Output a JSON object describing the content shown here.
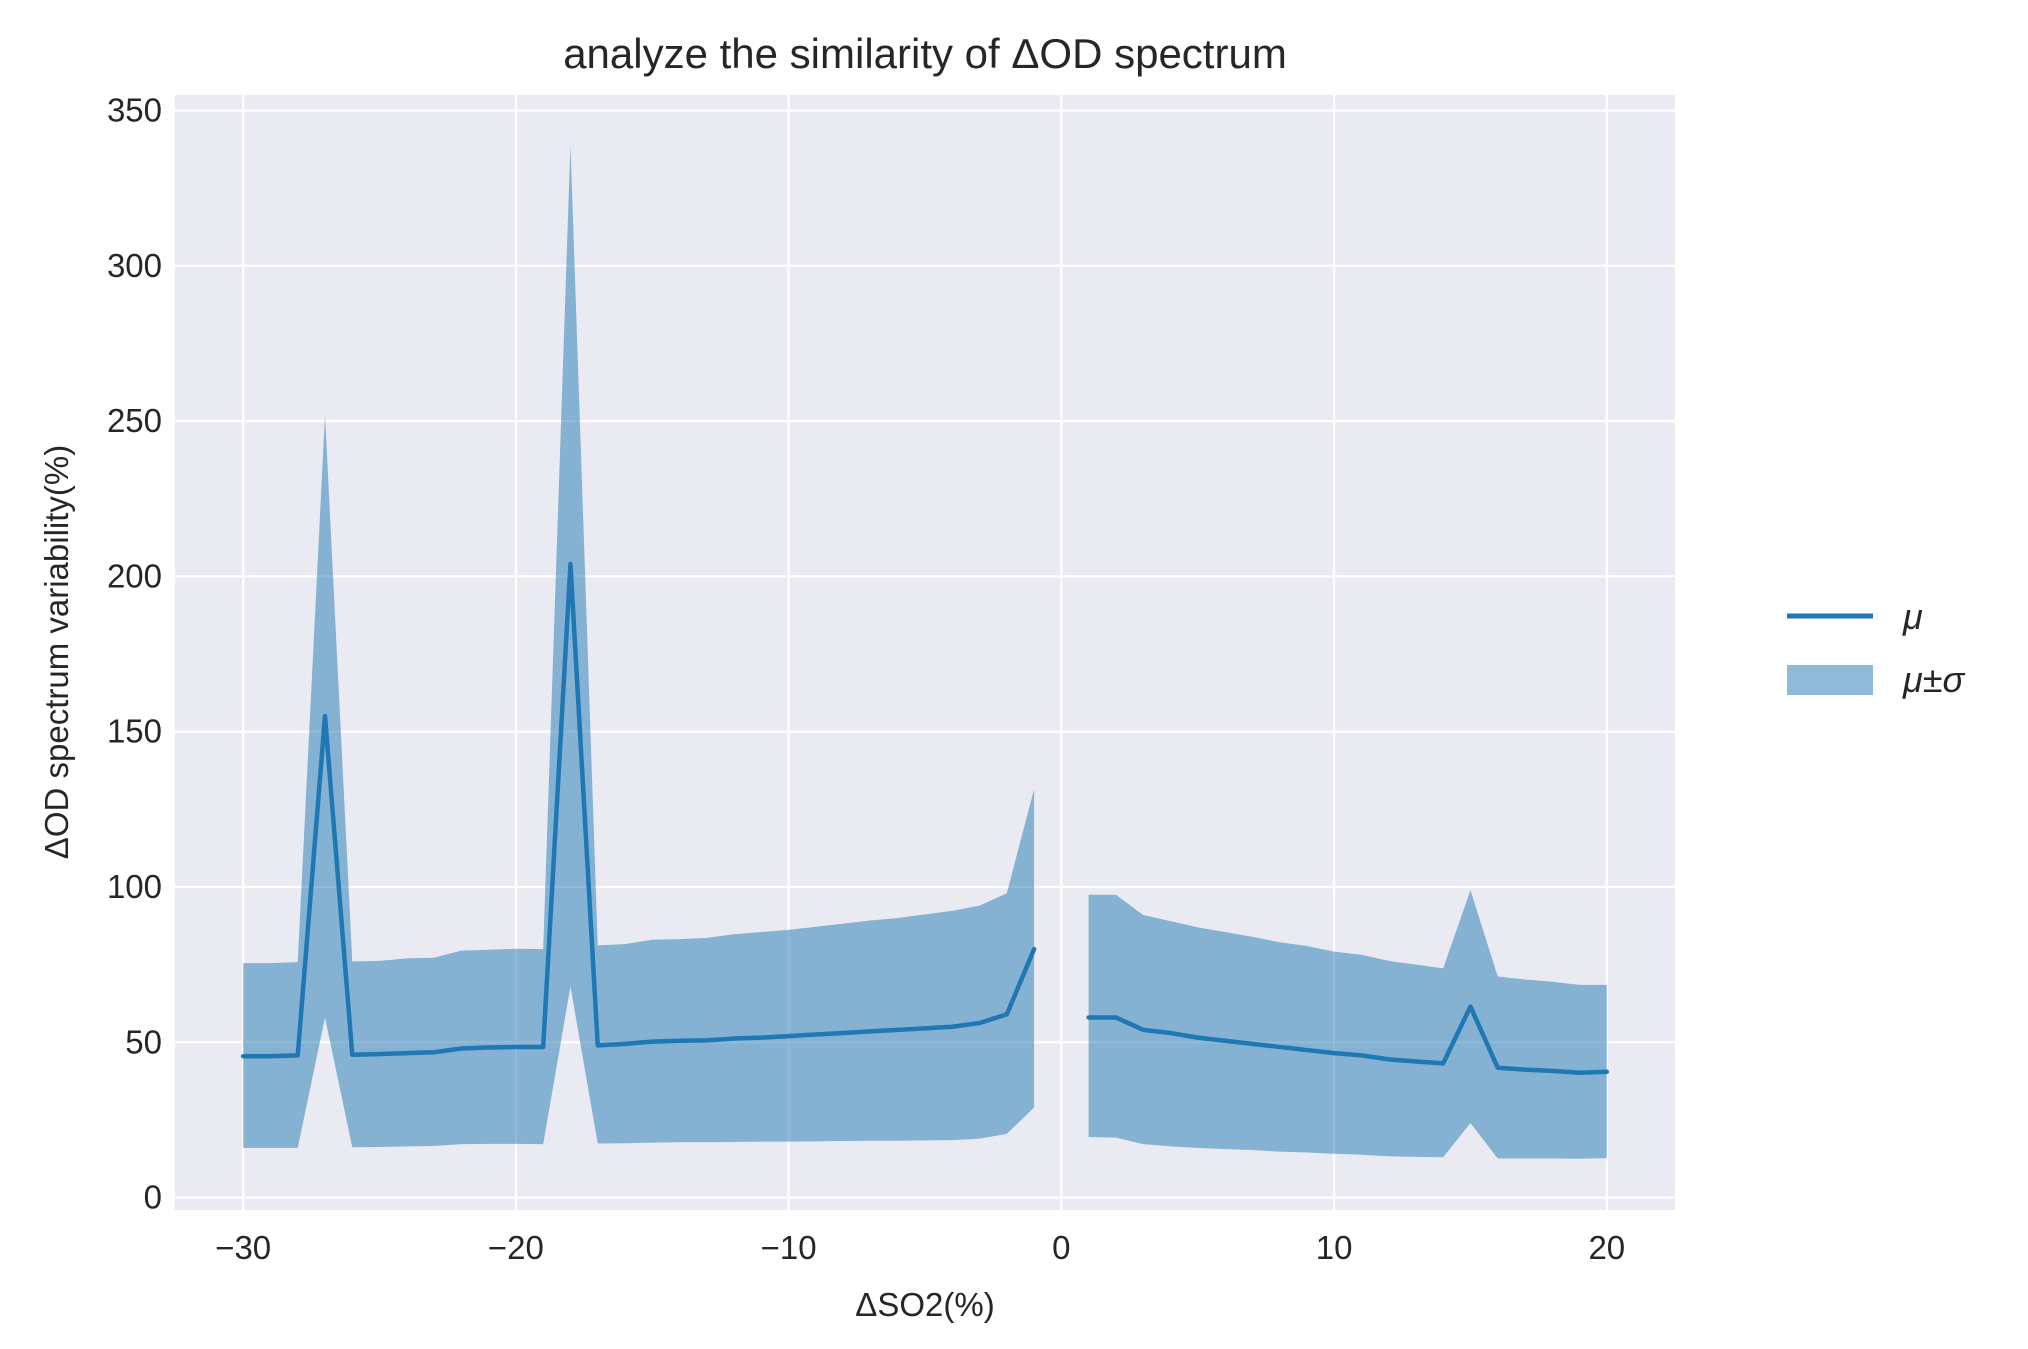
{
  "chart_data": {
    "type": "line",
    "title": "analyze the similarity of ΔOD spectrum",
    "xlabel": "ΔSO2(%)",
    "ylabel": "ΔOD spectrum variability(%)",
    "xlim": [
      -32.5,
      22.5
    ],
    "ylim": [
      -4,
      355
    ],
    "x_ticks": [
      -30,
      -20,
      -10,
      0,
      10,
      20
    ],
    "x_tick_labels": [
      "−30",
      "−20",
      "−10",
      "0",
      "10",
      "20"
    ],
    "y_ticks": [
      0,
      50,
      100,
      150,
      200,
      250,
      300,
      350
    ],
    "y_tick_labels": [
      "0",
      "50",
      "100",
      "150",
      "200",
      "250",
      "300",
      "350"
    ],
    "grid": true,
    "legend_position": "right-outside",
    "colors": {
      "line": "#1f77b4",
      "band": "#1f77b4",
      "background": "#eaeaf2",
      "grid": "#ffffff"
    },
    "series": [
      {
        "name": "μ",
        "kind": "line",
        "segments": [
          {
            "x": [
              -30,
              -29,
              -28,
              -27,
              -26,
              -25,
              -24,
              -23,
              -22,
              -21,
              -20,
              -19,
              -18,
              -17,
              -16,
              -15,
              -14,
              -13,
              -12,
              -11,
              -10,
              -9,
              -8,
              -7,
              -6,
              -5,
              -4,
              -3,
              -2,
              -1
            ],
            "y": [
              45.5,
              45.5,
              45.8,
              155,
              46,
              46.2,
              46.5,
              46.8,
              48,
              48.3,
              48.5,
              48.5,
              204,
              49,
              49.5,
              50.2,
              50.5,
              50.6,
              51.2,
              51.5,
              52,
              52.5,
              53,
              53.5,
              54,
              54.5,
              55,
              56.2,
              59,
              80
            ]
          },
          {
            "x": [
              1,
              2,
              3,
              4,
              5,
              6,
              7,
              8,
              9,
              10,
              11,
              12,
              13,
              14,
              15,
              16,
              17,
              18,
              19,
              20
            ],
            "y": [
              58,
              58,
              54,
              53,
              51.5,
              50.5,
              49.5,
              48.5,
              47.5,
              46.5,
              45.8,
              44.5,
              43.8,
              43.2,
              61.5,
              41.8,
              41.2,
              40.8,
              40.2,
              40.5
            ]
          }
        ]
      },
      {
        "name": "μ±σ",
        "kind": "band",
        "segments": [
          {
            "x": [
              -30,
              -29,
              -28,
              -27,
              -26,
              -25,
              -24,
              -23,
              -22,
              -21,
              -20,
              -19,
              -18,
              -17,
              -16,
              -15,
              -14,
              -13,
              -12,
              -11,
              -10,
              -9,
              -8,
              -7,
              -6,
              -5,
              -4,
              -3,
              -2,
              -1
            ],
            "upper": [
              75.5,
              75.5,
              75.8,
              252,
              76,
              76.2,
              77,
              77.2,
              79.5,
              79.8,
              80.1,
              80,
              339,
              81.2,
              81.6,
              83,
              83.2,
              83.6,
              84.8,
              85.5,
              86.2,
              87.2,
              88.2,
              89.2,
              90,
              91.2,
              92.3,
              94,
              98,
              131.5
            ],
            "lower": [
              16,
              16,
              16,
              58,
              16.2,
              16.3,
              16.5,
              16.6,
              17.2,
              17.3,
              17.3,
              17.2,
              68,
              17.4,
              17.5,
              17.7,
              17.8,
              17.8,
              17.9,
              18,
              18,
              18.1,
              18.2,
              18.3,
              18.3,
              18.4,
              18.5,
              19,
              20.5,
              29
            ]
          },
          {
            "x": [
              1,
              2,
              3,
              4,
              5,
              6,
              7,
              8,
              9,
              10,
              11,
              12,
              13,
              14,
              15,
              16,
              17,
              18,
              19,
              20
            ],
            "upper": [
              97.5,
              97.5,
              91,
              89,
              87,
              85.5,
              84,
              82.2,
              81,
              79.2,
              78.2,
              76.2,
              75,
              73.8,
              99,
              71.2,
              70.2,
              69.5,
              68.5,
              68.5
            ],
            "lower": [
              19.5,
              19.3,
              17.2,
              16.5,
              16,
              15.6,
              15.3,
              14.8,
              14.5,
              14.1,
              13.8,
              13.3,
              13.1,
              13,
              24,
              12.6,
              12.6,
              12.6,
              12.5,
              12.7
            ]
          }
        ]
      }
    ]
  }
}
